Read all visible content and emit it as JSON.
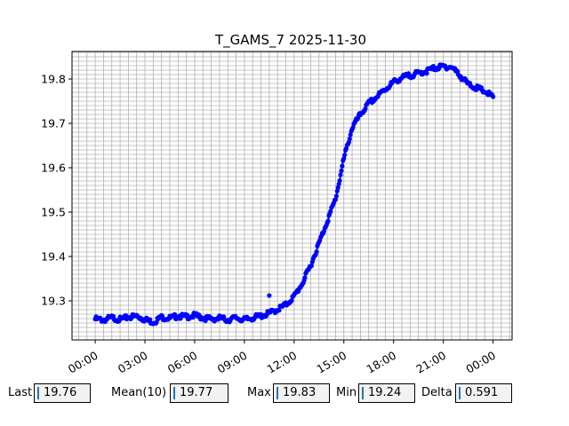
{
  "chart_data": {
    "type": "scatter",
    "title": "T_GAMS_7 2025-11-30",
    "xlabel": "",
    "ylabel": "",
    "x_unit": "hours",
    "xlim": [
      -1.4,
      25.15
    ],
    "ylim": [
      19.212,
      19.862
    ],
    "x_ticks": [
      "00:00",
      "03:00",
      "06:00",
      "09:00",
      "12:00",
      "15:00",
      "18:00",
      "21:00",
      "00:00"
    ],
    "x_tick_values": [
      0,
      3,
      6,
      9,
      12,
      15,
      18,
      21,
      24
    ],
    "y_ticks": [
      "19.3",
      "19.4",
      "19.5",
      "19.6",
      "19.7",
      "19.8"
    ],
    "y_tick_values": [
      19.3,
      19.4,
      19.5,
      19.6,
      19.7,
      19.8
    ],
    "grid": true,
    "marker_color": "#0000ff",
    "series": [
      {
        "x": [
          0.0,
          0.5,
          1.0,
          1.5,
          2.0,
          2.5,
          3.0,
          3.5,
          4.0,
          4.5,
          5.0,
          5.5,
          6.0,
          6.5,
          7.0,
          7.5,
          8.0,
          8.5,
          9.0,
          9.5,
          10.0,
          10.5,
          11.0,
          11.5,
          12.0,
          12.5,
          13.0,
          13.5,
          14.0,
          14.5,
          15.0,
          15.5,
          16.0,
          16.5,
          17.0,
          17.5,
          18.0,
          18.5,
          19.0,
          19.5,
          20.0,
          20.5,
          21.0,
          21.5,
          22.0,
          22.5,
          23.0,
          23.5,
          24.0
        ],
        "y": [
          19.259,
          19.257,
          19.262,
          19.258,
          19.263,
          19.266,
          19.258,
          19.252,
          19.263,
          19.261,
          19.266,
          19.264,
          19.267,
          19.262,
          19.259,
          19.261,
          19.257,
          19.262,
          19.257,
          19.262,
          19.266,
          19.272,
          19.281,
          19.291,
          19.31,
          19.34,
          19.38,
          19.43,
          19.48,
          19.53,
          19.62,
          19.69,
          19.72,
          19.745,
          19.76,
          19.777,
          19.793,
          19.803,
          19.808,
          19.813,
          19.818,
          19.825,
          19.828,
          19.827,
          19.808,
          19.788,
          19.78,
          19.772,
          19.76
        ],
        "outliers_x": [
          10.5
        ],
        "outliers_y": [
          19.312
        ]
      }
    ]
  },
  "stats": {
    "last_label": "Last",
    "last_value": "19.76",
    "mean_label": "Mean(10)",
    "mean_value": "19.77",
    "max_label": "Max",
    "max_value": "19.83",
    "min_label": "Min",
    "min_value": "19.24",
    "delta_label": "Delta",
    "delta_value": "0.591"
  }
}
